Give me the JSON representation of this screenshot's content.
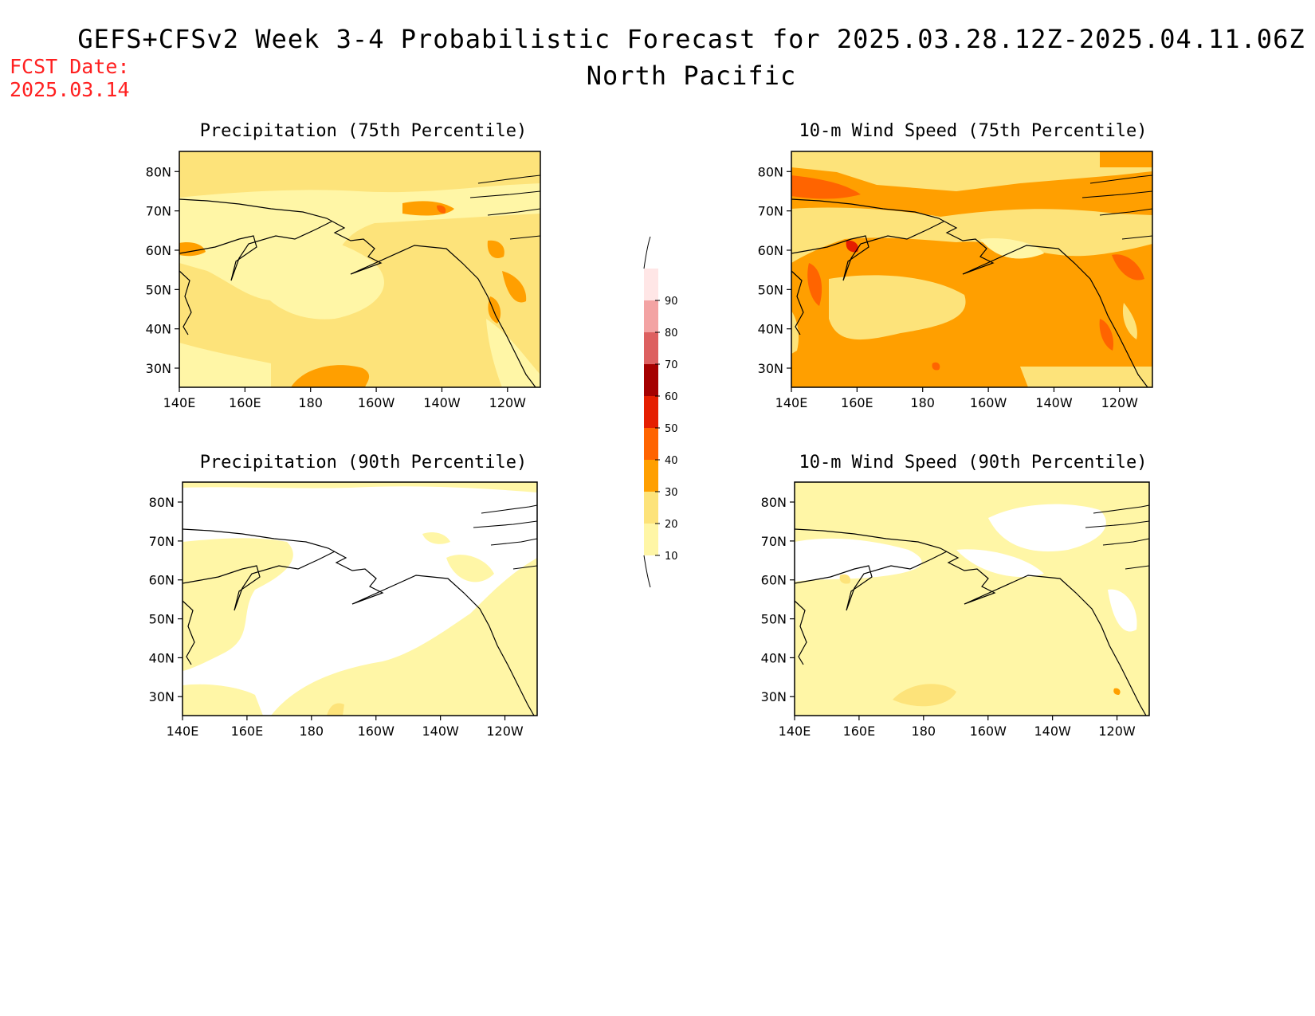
{
  "title": "GEFS+CFSv2 Week 3-4 Probabilistic Forecast for 2025.03.28.12Z-2025.04.11.06Z",
  "subtitle": "North Pacific",
  "fcst_date_label": "FCST Date:",
  "fcst_date_value": "2025.03.14",
  "panels": [
    {
      "title": "Precipitation (75th Percentile)"
    },
    {
      "title": "10-m Wind Speed (75th Percentile)"
    },
    {
      "title": "Precipitation (90th Percentile)"
    },
    {
      "title": "10-m Wind Speed (90th Percentile)"
    }
  ],
  "lon_labels": [
    "140E",
    "160E",
    "180",
    "160W",
    "140W",
    "120W"
  ],
  "lat_labels": [
    "80N",
    "70N",
    "60N",
    "50N",
    "40N",
    "30N"
  ],
  "colorbar": {
    "levels": [
      "10",
      "20",
      "30",
      "40",
      "50",
      "60",
      "70",
      "80",
      "90"
    ],
    "colors": [
      "#fff6a6",
      "#fde37a",
      "#ff9f00",
      "#ff6400",
      "#e51e00",
      "#a50000",
      "#dd6060",
      "#f3a3a3",
      "#ffe6e6"
    ]
  },
  "colors": {
    "c10": "#fff6a6",
    "c20": "#fde37a",
    "c30": "#ff9f00",
    "c40": "#ff6400",
    "c50": "#e51e00",
    "fcst": "#ff2020"
  }
}
